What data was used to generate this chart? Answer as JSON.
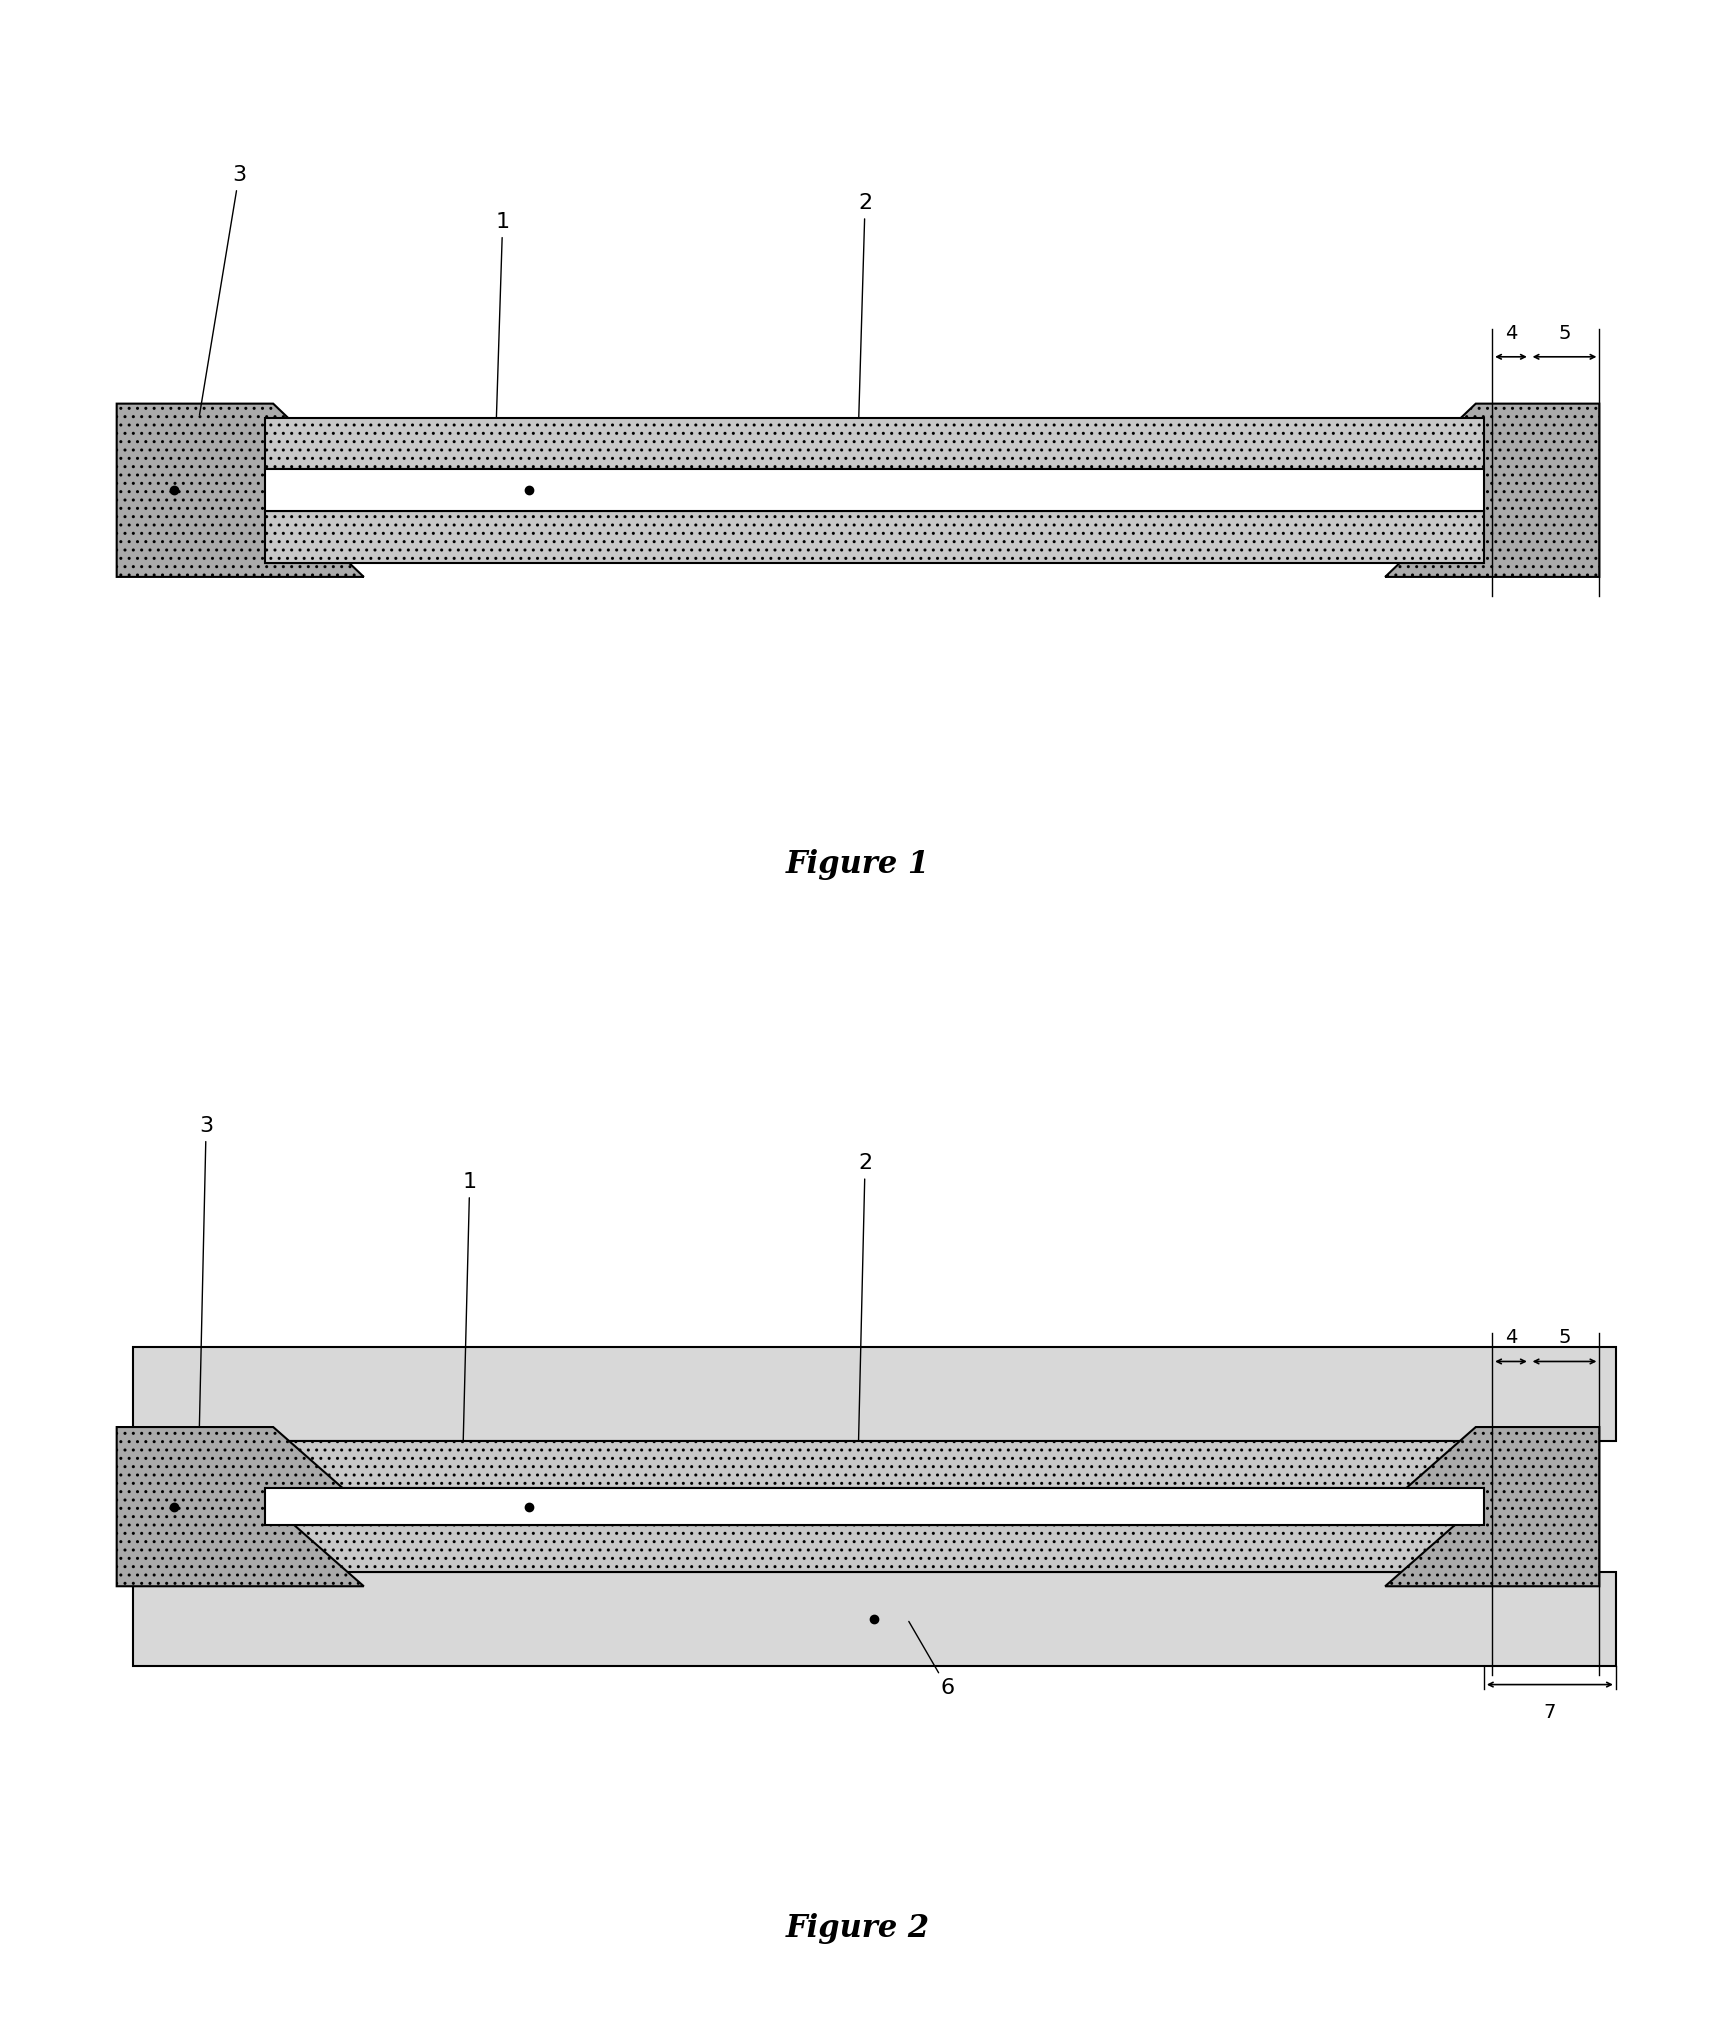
{
  "fig_width": 17.16,
  "fig_height": 20.36,
  "bg_color": "#ffffff",
  "fig1_title": "Figure 1",
  "fig2_title": "Figure 2",
  "gasket_color": "#aaaaaa",
  "catalyst_color": "#c8c8c8",
  "membrane_color": "#ffffff",
  "gdl_color": "#d8d8d8",
  "line_color": "#000000"
}
